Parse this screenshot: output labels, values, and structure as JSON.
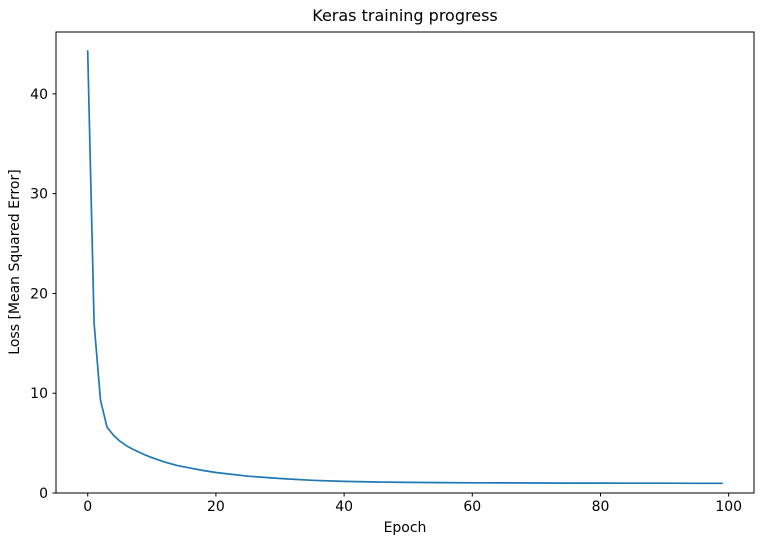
{
  "figure": {
    "title": "Keras training progress",
    "xlabel": "Epoch",
    "ylabel": "Loss [Mean Squared Error]",
    "background_color": "#ffffff",
    "text_color": "#000000",
    "spine_color": "#000000"
  },
  "chart_data": {
    "type": "line",
    "title": "Keras training progress",
    "xlabel": "Epoch",
    "ylabel": "Loss [Mean Squared Error]",
    "grid": false,
    "legend": null,
    "xlim": [
      -4.95,
      103.95
    ],
    "ylim": [
      0,
      46.2
    ],
    "x_ticks": [
      0,
      20,
      40,
      60,
      80,
      100
    ],
    "y_ticks": [
      0,
      10,
      20,
      30,
      40
    ],
    "series": [
      {
        "name": "loss",
        "color": "#1f77b4",
        "line_width": 1.7,
        "x": [
          0,
          1,
          2,
          3,
          4,
          5,
          6,
          7,
          8,
          9,
          10,
          12,
          14,
          16,
          18,
          20,
          25,
          30,
          35,
          40,
          45,
          50,
          55,
          60,
          65,
          70,
          75,
          80,
          85,
          90,
          95,
          99
        ],
        "y": [
          44.3,
          17.0,
          9.3,
          6.6,
          5.8,
          5.2,
          4.75,
          4.4,
          4.1,
          3.8,
          3.55,
          3.1,
          2.75,
          2.5,
          2.25,
          2.05,
          1.68,
          1.45,
          1.27,
          1.16,
          1.1,
          1.06,
          1.04,
          1.02,
          1.01,
          1.0,
          0.99,
          0.99,
          0.98,
          0.98,
          0.97,
          0.97
        ]
      }
    ]
  }
}
